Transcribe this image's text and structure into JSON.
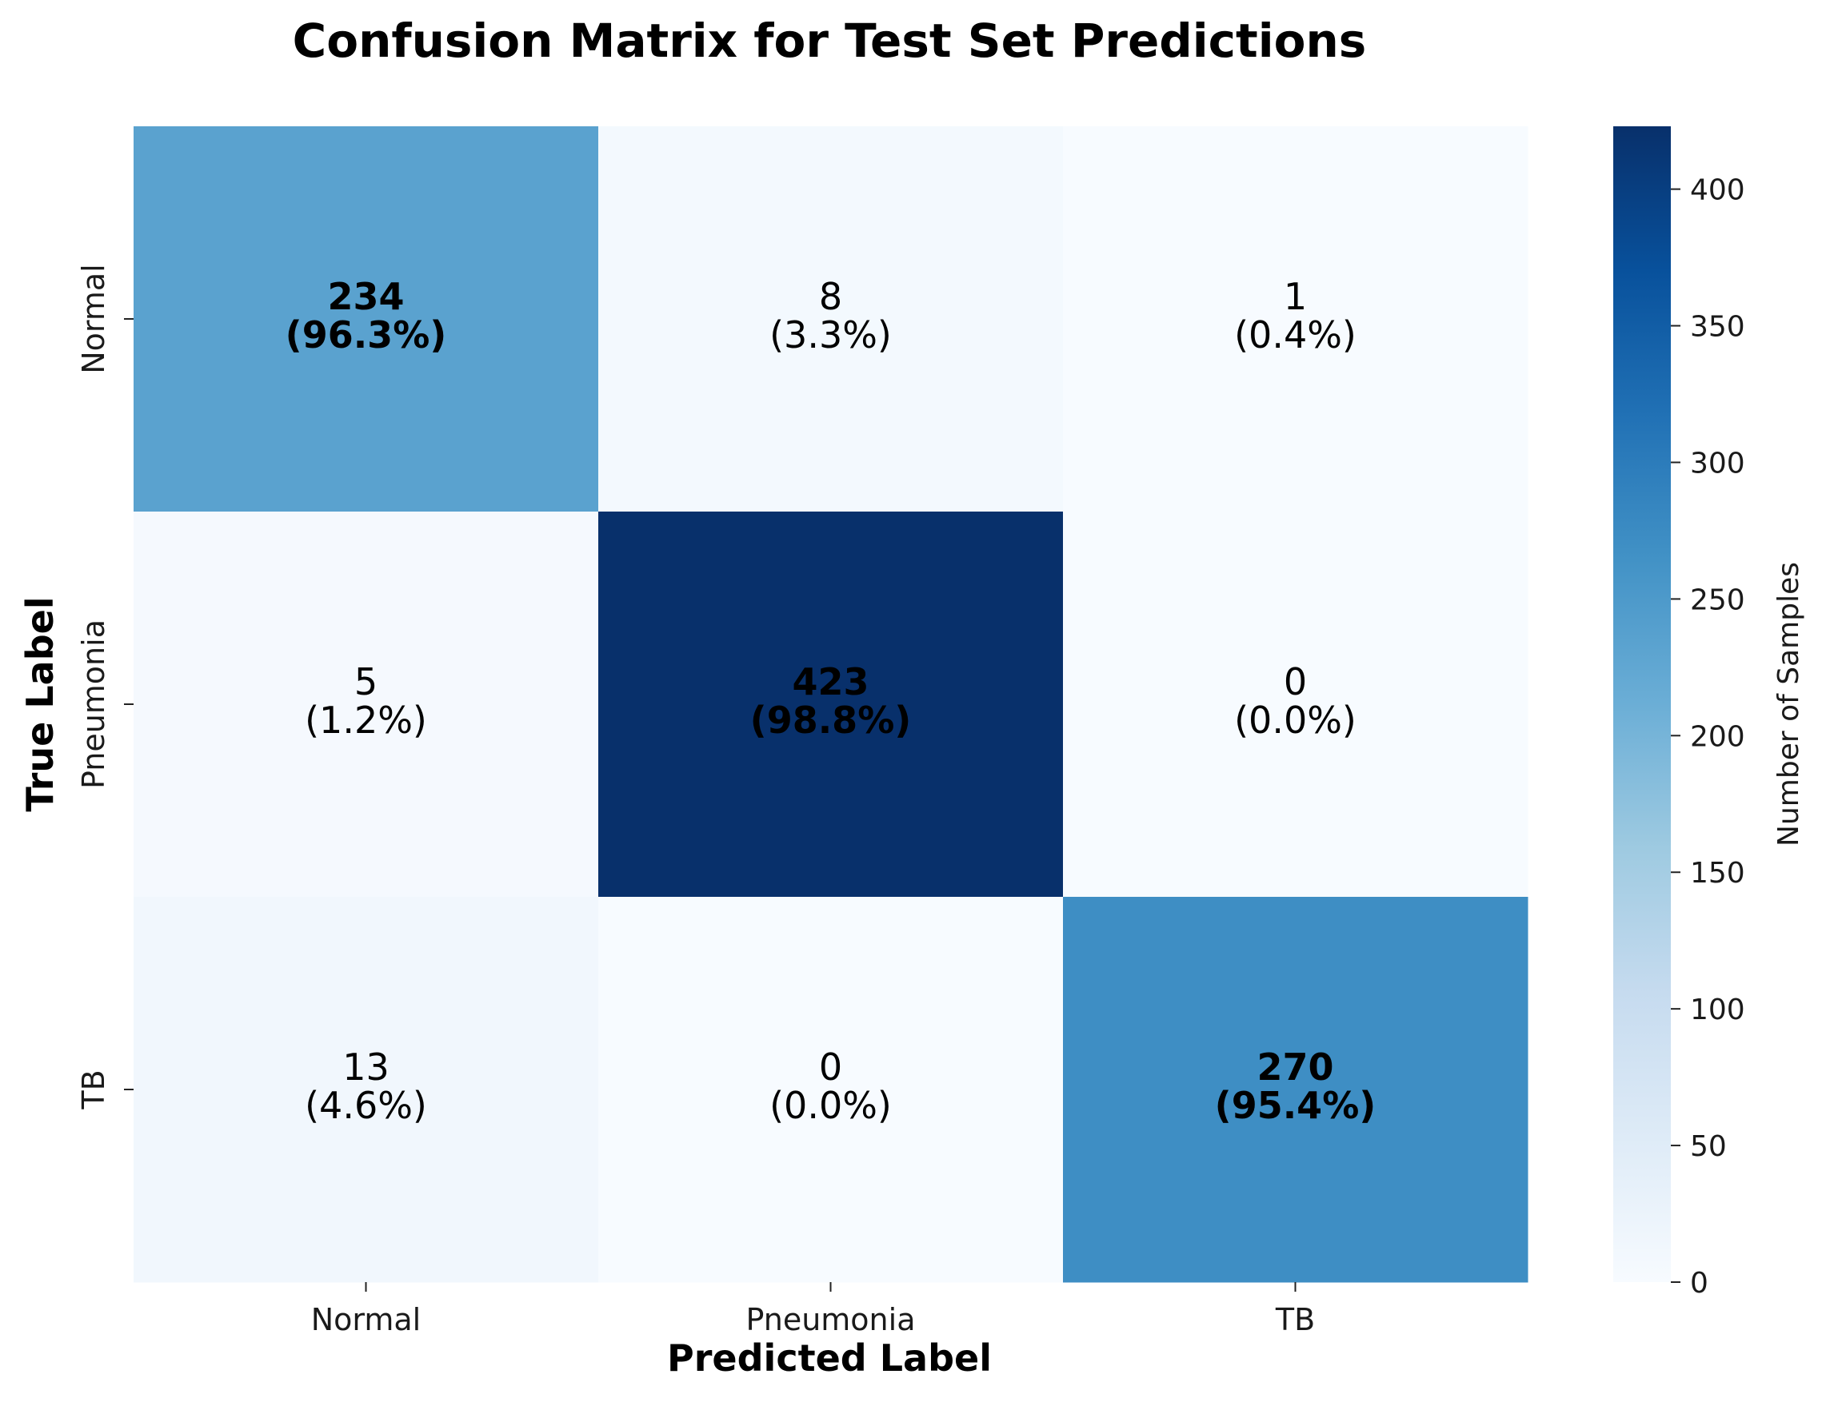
{
  "chart_data": {
    "type": "heatmap",
    "title": "Confusion Matrix for Test Set Predictions",
    "xlabel": "Predicted Label",
    "ylabel": "True Label",
    "x_categories": [
      "Normal",
      "Pneumonia",
      "TB"
    ],
    "y_categories": [
      "Normal",
      "Pneumonia",
      "TB"
    ],
    "values": [
      [
        234,
        8,
        1
      ],
      [
        5,
        423,
        0
      ],
      [
        13,
        0,
        270
      ]
    ],
    "percentages": [
      [
        "96.3%",
        "3.3%",
        "0.4%"
      ],
      [
        "1.2%",
        "98.8%",
        "0.0%"
      ],
      [
        "4.6%",
        "0.0%",
        "95.4%"
      ]
    ],
    "colormap": "Blues",
    "colorbar": {
      "label": "Number of Samples",
      "range": [
        0,
        423
      ],
      "ticks": [
        0,
        50,
        100,
        150,
        200,
        250,
        300,
        350,
        400
      ]
    },
    "grid": false,
    "legend": "none"
  }
}
